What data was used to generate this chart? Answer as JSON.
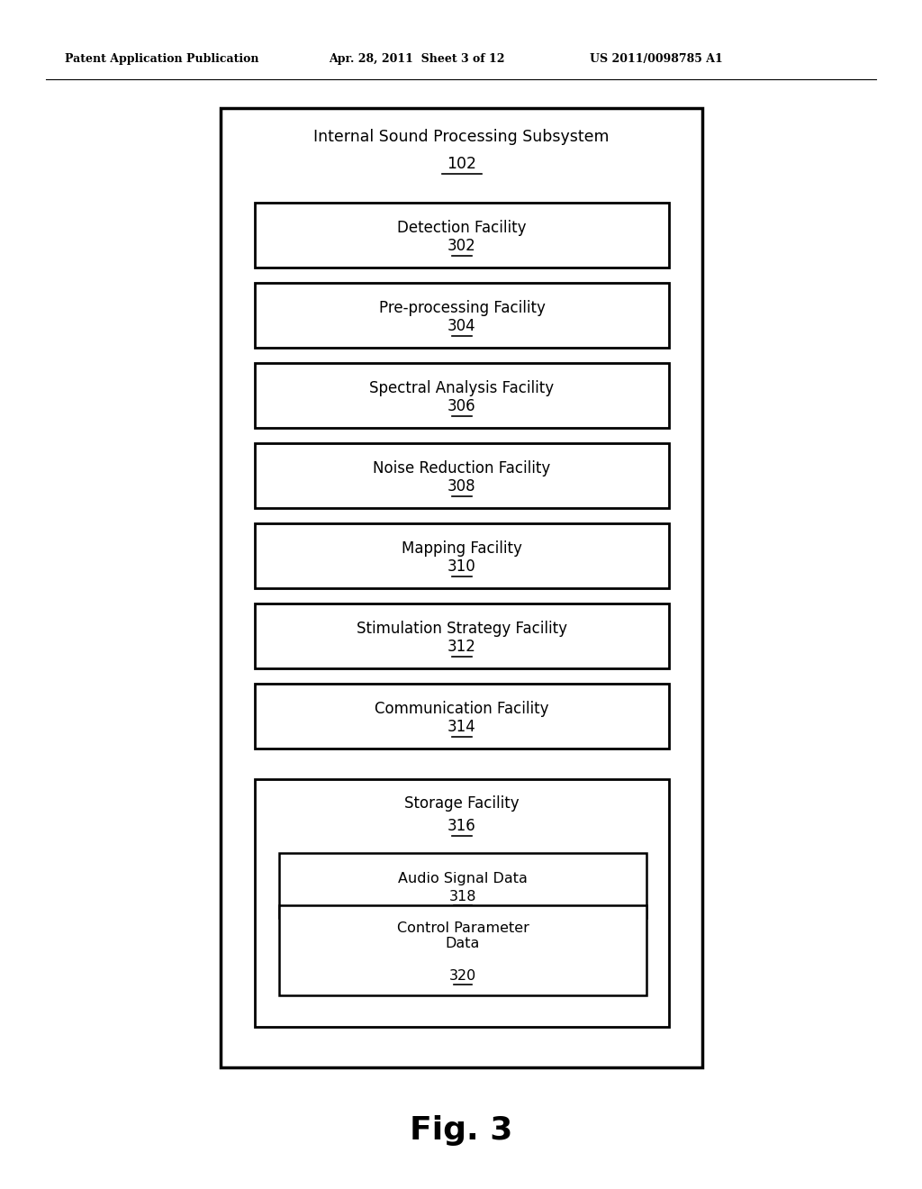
{
  "background_color": "#ffffff",
  "header_text": "Patent Application Publication",
  "header_date": "Apr. 28, 2011  Sheet 3 of 12",
  "header_patent": "US 2011/0098785 A1",
  "fig_label": "Fig. 3",
  "outer_box": {
    "label": "Internal Sound Processing Subsystem",
    "ref": "102"
  },
  "boxes": [
    {
      "label": "Detection Facility",
      "ref": "302"
    },
    {
      "label": "Pre-processing Facility",
      "ref": "304"
    },
    {
      "label": "Spectral Analysis Facility",
      "ref": "306"
    },
    {
      "label": "Noise Reduction Facility",
      "ref": "308"
    },
    {
      "label": "Mapping Facility",
      "ref": "310"
    },
    {
      "label": "Stimulation Strategy Facility",
      "ref": "312"
    },
    {
      "label": "Communication Facility",
      "ref": "314"
    }
  ],
  "storage_box": {
    "label": "Storage Facility",
    "ref": "316",
    "children": [
      {
        "label": "Audio Signal Data",
        "ref": "318"
      },
      {
        "label": "Control Parameter\nData",
        "ref": "320"
      }
    ]
  }
}
